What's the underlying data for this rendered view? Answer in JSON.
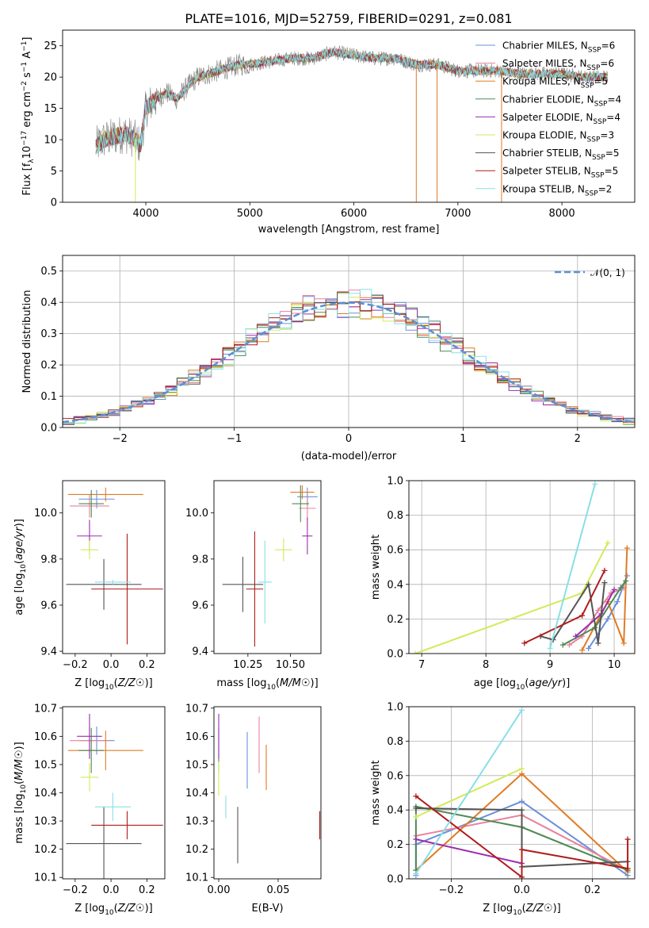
{
  "title": "PLATE=1016, MJD=52759, FIBERID=0291, z=0.081",
  "colors": {
    "chabrier_miles": "#6a90d8",
    "salpeter_miles": "#e8829a",
    "kroupa_miles": "#e07b24",
    "chabrier_elodie": "#4e8a56",
    "salpeter_elodie": "#9a2eb0",
    "kroupa_elodie": "#d2ea5a",
    "chabrier_stelib": "#555555",
    "salpeter_stelib": "#b01c1c",
    "kroupa_stelib": "#88dfe6",
    "data": "#808080",
    "gauss": "#5b8fd6"
  },
  "chart_data": [
    {
      "id": "spectrum",
      "type": "line",
      "title": "PLATE=1016, MJD=52759, FIBERID=0291, z=0.081",
      "xlabel": "wavelength [Angstrom, rest frame]",
      "ylabel": "Flux [f_λ 10^-17 erg cm^-2 s^-1 A^-1]",
      "xlim": [
        3200,
        8700
      ],
      "ylim": [
        0,
        27.5
      ],
      "xticks": [
        "4000",
        "5000",
        "6000",
        "7000",
        "8000"
      ],
      "yticks": [
        "0",
        "5",
        "10",
        "15",
        "20",
        "25"
      ],
      "grid": false,
      "legend_position": "upper-right",
      "legend": [
        "Chabrier MILES, N_SSP=6",
        "Salpeter MILES, N_SSP=6",
        "Kroupa MILES, N_SSP=5",
        "Chabrier ELODIE, N_SSP=4",
        "Salpeter ELODIE, N_SSP=4",
        "Kroupa ELODIE, N_SSP=3",
        "Chabrier STELIB, N_SSP=5",
        "Salpeter STELIB, N_SSP=5",
        "Kroupa STELIB, N_SSP=2"
      ],
      "continuum": {
        "x": [
          3520,
          3600,
          3700,
          3800,
          3900,
          3950,
          4000,
          4100,
          4200,
          4300,
          4400,
          4500,
          4600,
          4700,
          4800,
          4900,
          5000,
          5200,
          5400,
          5600,
          5800,
          6000,
          6200,
          6400,
          6600,
          6800,
          7000,
          7200,
          7400,
          7600,
          7800,
          8000,
          8200,
          8440
        ],
        "y": [
          9,
          10,
          10.5,
          11,
          10,
          9,
          15,
          16.5,
          17.5,
          16.5,
          18.5,
          20,
          20.5,
          21,
          21.5,
          22,
          22,
          22.5,
          23,
          23,
          24,
          23.5,
          23,
          23,
          22,
          22,
          21,
          21,
          21,
          20.5,
          20.5,
          20.5,
          20,
          20
        ]
      }
    },
    {
      "id": "residuals",
      "type": "histogram",
      "xlabel": "(data-model)/error",
      "ylabel": "Normed distribution",
      "xlim": [
        -2.5,
        2.5
      ],
      "ylim": [
        0,
        0.55
      ],
      "xticks": [
        "−2",
        "−1",
        "0",
        "1",
        "2"
      ],
      "yticks": [
        "0.0",
        "0.1",
        "0.2",
        "0.3",
        "0.4",
        "0.5"
      ],
      "grid": true,
      "legend_position": "upper-right",
      "legend": [
        "𝒩(0, 1)"
      ],
      "bin_width": 0.1,
      "bin_start": -2.5,
      "gaussian": {
        "mean": 0,
        "sigma": 1
      }
    },
    {
      "id": "age_vs_Z",
      "type": "errorbar",
      "xlabel": "Z [log10(Z/Z☉)]",
      "ylabel": "age [log10(age/yr)]",
      "xlim": [
        -0.27,
        0.3
      ],
      "ylim": [
        9.39,
        10.14
      ],
      "xticks": [
        "−0.2",
        "0.0",
        "0.2"
      ],
      "yticks": [
        "9.4",
        "9.6",
        "9.8",
        "10.0"
      ],
      "points": [
        {
          "x": -0.08,
          "xerr": 0.1,
          "y": 10.06,
          "yerr": 0.04,
          "c": "chabrier_miles"
        },
        {
          "x": -0.12,
          "xerr": 0.11,
          "y": 10.03,
          "yerr": 0.05,
          "c": "salpeter_miles"
        },
        {
          "x": -0.03,
          "xerr": 0.21,
          "y": 10.08,
          "yerr": 0.03,
          "c": "kroupa_miles"
        },
        {
          "x": -0.11,
          "xerr": 0.07,
          "y": 10.04,
          "yerr": 0.06,
          "c": "chabrier_elodie"
        },
        {
          "x": -0.12,
          "xerr": 0.07,
          "y": 9.9,
          "yerr": 0.07,
          "c": "salpeter_elodie"
        },
        {
          "x": -0.12,
          "xerr": 0.05,
          "y": 9.84,
          "yerr": 0.04,
          "c": "kroupa_elodie"
        },
        {
          "x": -0.04,
          "xerr": 0.21,
          "y": 9.69,
          "yerr": 0.11,
          "c": "chabrier_stelib"
        },
        {
          "x": 0.09,
          "xerr": 0.2,
          "y": 9.67,
          "yerr": 0.24,
          "c": "salpeter_stelib"
        },
        {
          "x": 0.01,
          "xerr": 0.1,
          "y": 9.7,
          "yerr": 0.01,
          "c": "kroupa_stelib"
        }
      ]
    },
    {
      "id": "age_vs_mass",
      "type": "errorbar",
      "xlabel": "mass [log10(M/M☉)]",
      "ylabel": "",
      "xlim": [
        10.05,
        10.68
      ],
      "ylim": [
        9.39,
        10.14
      ],
      "xticks": [
        "10.25",
        "10.50"
      ],
      "yticks": [
        "9.4",
        "9.6",
        "9.8",
        "10.0"
      ],
      "points": [
        {
          "x": 10.6,
          "xerr": 0.06,
          "y": 10.07,
          "yerr": 0.04,
          "c": "chabrier_miles"
        },
        {
          "x": 10.6,
          "xerr": 0.05,
          "y": 10.02,
          "yerr": 0.05,
          "c": "salpeter_miles"
        },
        {
          "x": 10.57,
          "xerr": 0.07,
          "y": 10.09,
          "yerr": 0.03,
          "c": "kroupa_miles"
        },
        {
          "x": 10.56,
          "xerr": 0.05,
          "y": 10.04,
          "yerr": 0.08,
          "c": "chabrier_elodie"
        },
        {
          "x": 10.6,
          "xerr": 0.03,
          "y": 9.9,
          "yerr": 0.08,
          "c": "salpeter_elodie"
        },
        {
          "x": 10.46,
          "xerr": 0.05,
          "y": 9.84,
          "yerr": 0.05,
          "c": "kroupa_elodie"
        },
        {
          "x": 10.22,
          "xerr": 0.12,
          "y": 9.69,
          "yerr": 0.12,
          "c": "chabrier_stelib"
        },
        {
          "x": 10.29,
          "xerr": 0.05,
          "y": 9.67,
          "yerr": 0.25,
          "c": "salpeter_stelib"
        },
        {
          "x": 10.35,
          "xerr": 0.04,
          "y": 9.7,
          "yerr": 0.18,
          "c": "kroupa_stelib"
        }
      ]
    },
    {
      "id": "weight_vs_age",
      "type": "line",
      "xlabel": "age [log10(age/yr)]",
      "ylabel": "mass weight",
      "xlim": [
        6.8,
        10.32
      ],
      "ylim": [
        0,
        1
      ],
      "xticks": [
        "7",
        "8",
        "9",
        "10"
      ],
      "yticks": [
        "0.0",
        "0.2",
        "0.4",
        "0.6",
        "0.8",
        "1.0"
      ],
      "grid": true,
      "series": [
        {
          "c": "chabrier_miles",
          "x": [
            9.6,
            9.9,
            10.05,
            10.2
          ],
          "y": [
            0.03,
            0.2,
            0.3,
            0.45
          ]
        },
        {
          "c": "salpeter_miles",
          "x": [
            9.3,
            9.5,
            9.75,
            9.95,
            10.15
          ],
          "y": [
            0.05,
            0.1,
            0.25,
            0.35,
            0.38
          ]
        },
        {
          "c": "kroupa_miles",
          "x": [
            9.5,
            9.9,
            10.15,
            10.2
          ],
          "y": [
            0.02,
            0.3,
            0.06,
            0.61
          ]
        },
        {
          "c": "chabrier_elodie",
          "x": [
            9.2,
            9.7,
            10.1,
            10.18
          ],
          "y": [
            0.05,
            0.15,
            0.38,
            0.42
          ]
        },
        {
          "c": "salpeter_elodie",
          "x": [
            9.4,
            9.8,
            10.0
          ],
          "y": [
            0.1,
            0.23,
            0.37
          ]
        },
        {
          "c": "kroupa_elodie",
          "x": [
            6.9,
            9.5,
            9.9
          ],
          "y": [
            0.0,
            0.35,
            0.64
          ]
        },
        {
          "c": "chabrier_stelib",
          "x": [
            8.85,
            9.05,
            9.6,
            9.75,
            9.85
          ],
          "y": [
            0.1,
            0.08,
            0.4,
            0.06,
            0.41
          ]
        },
        {
          "c": "salpeter_stelib",
          "x": [
            8.6,
            9.5,
            9.85
          ],
          "y": [
            0.06,
            0.22,
            0.48
          ]
        },
        {
          "c": "kroupa_stelib",
          "x": [
            9.0,
            9.7
          ],
          "y": [
            0.03,
            0.98
          ]
        }
      ]
    },
    {
      "id": "mass_vs_Z",
      "type": "errorbar",
      "xlabel": "Z [log10(Z/Z☉)]",
      "ylabel": "mass [log10(M/M☉)]",
      "xlim": [
        -0.27,
        0.3
      ],
      "ylim": [
        10.095,
        10.705
      ],
      "xticks": [
        "−0.2",
        "0.0",
        "0.2"
      ],
      "yticks": [
        "10.1",
        "10.2",
        "10.3",
        "10.4",
        "10.5",
        "10.6",
        "10.7"
      ],
      "points": [
        {
          "x": -0.08,
          "xerr": 0.1,
          "y": 10.585,
          "yerr": 0.05,
          "c": "chabrier_miles"
        },
        {
          "x": -0.12,
          "xerr": 0.11,
          "y": 10.585,
          "yerr": 0.05,
          "c": "salpeter_miles"
        },
        {
          "x": -0.03,
          "xerr": 0.21,
          "y": 10.55,
          "yerr": 0.07,
          "c": "kroupa_miles"
        },
        {
          "x": -0.11,
          "xerr": 0.07,
          "y": 10.55,
          "yerr": 0.08,
          "c": "chabrier_elodie"
        },
        {
          "x": -0.12,
          "xerr": 0.07,
          "y": 10.6,
          "yerr": 0.08,
          "c": "salpeter_elodie"
        },
        {
          "x": -0.12,
          "xerr": 0.05,
          "y": 10.455,
          "yerr": 0.05,
          "c": "kroupa_elodie"
        },
        {
          "x": -0.04,
          "xerr": 0.21,
          "y": 10.22,
          "yerr": 0.13,
          "c": "chabrier_stelib"
        },
        {
          "x": 0.09,
          "xerr": 0.2,
          "y": 10.285,
          "yerr": 0.05,
          "c": "salpeter_stelib"
        },
        {
          "x": 0.01,
          "xerr": 0.1,
          "y": 10.35,
          "yerr": 0.05,
          "c": "kroupa_stelib"
        }
      ]
    },
    {
      "id": "mass_vs_ebv",
      "type": "errorbar",
      "xlabel": "E(B-V)",
      "ylabel": "",
      "xlim": [
        -0.004,
        0.086
      ],
      "ylim": [
        10.095,
        10.705
      ],
      "xticks": [
        "0.00",
        "0.05"
      ],
      "yticks": [
        "10.1",
        "10.2",
        "10.3",
        "10.4",
        "10.5",
        "10.6",
        "10.7"
      ],
      "points": [
        {
          "x": 0.024,
          "y": 10.515,
          "yerr": 0.1,
          "c": "chabrier_miles"
        },
        {
          "x": 0.034,
          "y": 10.57,
          "yerr": 0.1,
          "c": "salpeter_miles"
        },
        {
          "x": 0.04,
          "y": 10.49,
          "yerr": 0.08,
          "c": "kroupa_miles"
        },
        {
          "x": 0.0,
          "y": 10.55,
          "yerr": 0.08,
          "c": "chabrier_elodie"
        },
        {
          "x": 0.0,
          "y": 10.6,
          "yerr": 0.08,
          "c": "salpeter_elodie"
        },
        {
          "x": 0.0,
          "y": 10.45,
          "yerr": 0.06,
          "c": "kroupa_elodie"
        },
        {
          "x": 0.016,
          "y": 10.25,
          "yerr": 0.1,
          "c": "chabrier_stelib"
        },
        {
          "x": 0.085,
          "y": 10.285,
          "yerr": 0.05,
          "c": "salpeter_stelib"
        },
        {
          "x": 0.006,
          "y": 10.35,
          "yerr": 0.04,
          "c": "kroupa_stelib"
        }
      ]
    },
    {
      "id": "weight_vs_Z",
      "type": "line",
      "xlabel": "Z [log10(Z/Z☉)]",
      "ylabel": "mass weight",
      "xlim": [
        -0.32,
        0.32
      ],
      "ylim": [
        0,
        1
      ],
      "xticks": [
        "−0.2",
        "0.0",
        "0.2"
      ],
      "yticks": [
        "0.0",
        "0.2",
        "0.4",
        "0.6",
        "0.8",
        "1.0"
      ],
      "grid": true,
      "series": [
        {
          "c": "chabrier_miles",
          "x": [
            -0.3,
            -0.3,
            0.0,
            0.3
          ],
          "y": [
            0.02,
            0.2,
            0.45,
            0.02
          ]
        },
        {
          "c": "salpeter_miles",
          "x": [
            -0.3,
            0.0,
            0.3
          ],
          "y": [
            0.25,
            0.37,
            0.05
          ]
        },
        {
          "c": "kroupa_miles",
          "x": [
            -0.3,
            0.0,
            0.3
          ],
          "y": [
            0.05,
            0.61,
            0.04
          ]
        },
        {
          "c": "chabrier_elodie",
          "x": [
            -0.3,
            -0.3,
            0.0,
            0.3
          ],
          "y": [
            0.05,
            0.42,
            0.3,
            0.05
          ]
        },
        {
          "c": "salpeter_elodie",
          "x": [
            -0.3,
            0.0
          ],
          "y": [
            0.23,
            0.09
          ]
        },
        {
          "c": "kroupa_elodie",
          "x": [
            -0.3,
            0.0
          ],
          "y": [
            0.36,
            0.64
          ]
        },
        {
          "c": "chabrier_stelib",
          "x": [
            -0.3,
            0.0,
            0.0,
            0.3
          ],
          "y": [
            0.41,
            0.4,
            0.07,
            0.1
          ]
        },
        {
          "c": "salpeter_stelib",
          "x": [
            -0.3,
            0.0,
            0.0,
            0.3,
            0.3
          ],
          "y": [
            0.48,
            0.01,
            0.17,
            0.06,
            0.23
          ]
        },
        {
          "c": "kroupa_stelib",
          "x": [
            -0.3,
            0.0
          ],
          "y": [
            0.03,
            0.98
          ]
        }
      ]
    }
  ]
}
